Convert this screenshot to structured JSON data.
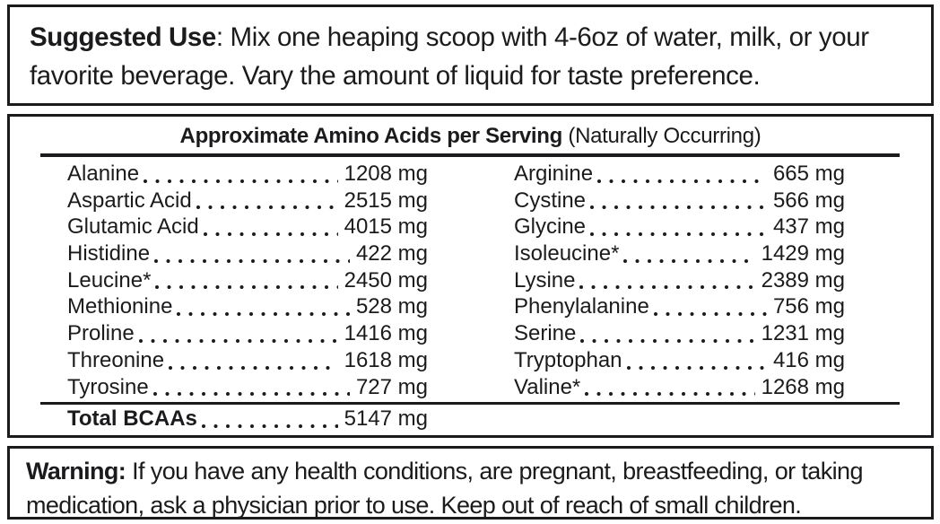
{
  "suggested_use": {
    "label": "Suggested Use",
    "text": ": Mix one heaping scoop with 4-6oz of water, milk, or your favorite beverage. Vary the amount of liquid for taste preference."
  },
  "amino_table": {
    "title_bold": "Approximate Amino Acids per Serving",
    "title_note": " (Naturally Occurring)",
    "unit": "mg",
    "left_column": [
      {
        "name": "Alanine",
        "value": "1208 mg"
      },
      {
        "name": "Aspartic Acid",
        "value": "2515 mg"
      },
      {
        "name": "Glutamic Acid",
        "value": "4015 mg"
      },
      {
        "name": "Histidine",
        "value": "422 mg"
      },
      {
        "name": "Leucine*",
        "value": "2450 mg"
      },
      {
        "name": "Methionine",
        "value": "528 mg"
      },
      {
        "name": "Proline",
        "value": "1416 mg"
      },
      {
        "name": "Threonine",
        "value": "1618 mg"
      },
      {
        "name": "Tyrosine",
        "value": "727 mg"
      }
    ],
    "right_column": [
      {
        "name": "Arginine",
        "value": "665 mg"
      },
      {
        "name": "Cystine",
        "value": "566 mg"
      },
      {
        "name": "Glycine",
        "value": "437 mg"
      },
      {
        "name": "Isoleucine*",
        "value": "1429 mg"
      },
      {
        "name": "Lysine",
        "value": "2389 mg"
      },
      {
        "name": "Phenylalanine",
        "value": "756 mg"
      },
      {
        "name": "Serine",
        "value": "1231 mg"
      },
      {
        "name": "Tryptophan",
        "value": "416 mg"
      },
      {
        "name": "Valine*",
        "value": "1268 mg"
      }
    ],
    "total": {
      "name": "Total BCAAs",
      "value": "5147 mg"
    }
  },
  "warning": {
    "label": "Warning:",
    "text": " If you have any health conditions, are pregnant, breastfeeding, or taking medication, ask a physician prior to use. Keep out of reach of small children."
  },
  "colors": {
    "text": "#1b1b1d",
    "border": "#1b1b1d",
    "background": "#ffffff"
  }
}
